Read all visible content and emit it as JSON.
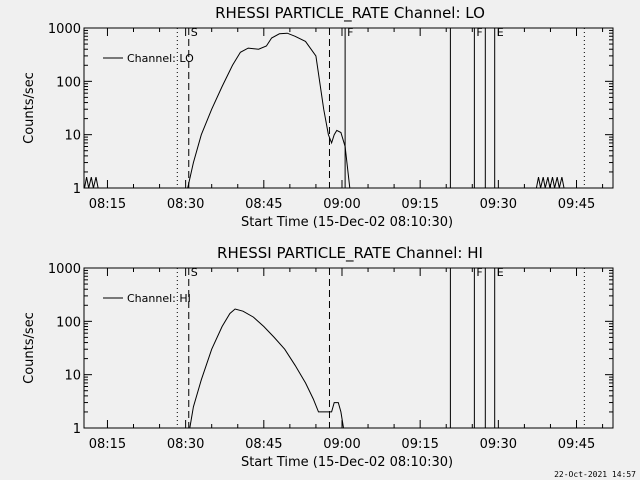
{
  "timestamp": "22-Oct-2021 14:57",
  "x_axis": {
    "label": "Start Time (15-Dec-02 08:10:30)",
    "ticks": [
      "08:15",
      "08:30",
      "08:45",
      "09:00",
      "09:15",
      "09:30",
      "09:45"
    ],
    "tick_minutes": [
      15,
      30,
      45,
      60,
      75,
      90,
      105
    ],
    "range_minutes": [
      10.5,
      112
    ]
  },
  "chart_data": [
    {
      "type": "line",
      "title": "RHESSI PARTICLE_RATE Channel: LO",
      "ylabel": "Counts/sec",
      "yscale": "log",
      "ylim": [
        1,
        1000
      ],
      "yticks": [
        "1",
        "10",
        "100",
        "1000"
      ],
      "ytick_values": [
        1,
        10,
        100,
        1000
      ],
      "legend": "Channel: LO",
      "markers": [
        {
          "label": "S",
          "t": 30.6,
          "style": "dashed"
        },
        {
          "label": "",
          "t": 57.6,
          "style": "dashed"
        },
        {
          "label": "F",
          "t": 60.6,
          "style": "solid"
        },
        {
          "label": "",
          "t": 80.8,
          "style": "solid"
        },
        {
          "label": "F",
          "t": 85.4,
          "style": "solid"
        },
        {
          "label": "",
          "t": 87.5,
          "style": "solid"
        },
        {
          "label": "E",
          "t": 89.3,
          "style": "solid"
        },
        {
          "label": "",
          "t": 28.4,
          "style": "dotted"
        },
        {
          "label": "",
          "t": 106.5,
          "style": "dotted"
        }
      ],
      "series": [
        {
          "name": "Channel: LO",
          "points": [
            [
              10.6,
              1
            ],
            [
              11.0,
              1.6
            ],
            [
              11.4,
              1
            ],
            [
              11.9,
              1.6
            ],
            [
              12.3,
              1
            ],
            [
              12.8,
              1.6
            ],
            [
              13.2,
              1
            ],
            [
              30.4,
              1
            ],
            [
              31.5,
              3
            ],
            [
              33,
              10
            ],
            [
              35,
              30
            ],
            [
              37,
              80
            ],
            [
              39,
              200
            ],
            [
              40.5,
              350
            ],
            [
              42,
              420
            ],
            [
              44,
              400
            ],
            [
              45.5,
              460
            ],
            [
              46.5,
              650
            ],
            [
              48,
              780
            ],
            [
              49.5,
              800
            ],
            [
              51,
              700
            ],
            [
              53,
              560
            ],
            [
              55,
              300
            ],
            [
              56.5,
              30
            ],
            [
              57.4,
              10
            ],
            [
              58.0,
              7
            ],
            [
              58.5,
              10
            ],
            [
              59.0,
              12
            ],
            [
              59.8,
              11
            ],
            [
              60.6,
              6
            ],
            [
              61.5,
              1
            ],
            [
              97.3,
              1
            ],
            [
              97.7,
              1.6
            ],
            [
              98.1,
              1
            ],
            [
              98.6,
              1.6
            ],
            [
              99.0,
              1
            ],
            [
              99.5,
              1.6
            ],
            [
              99.9,
              1
            ],
            [
              100.4,
              1.6
            ],
            [
              100.8,
              1
            ],
            [
              101.3,
              1.6
            ],
            [
              101.7,
              1
            ],
            [
              102.2,
              1.6
            ],
            [
              102.6,
              1
            ]
          ]
        }
      ]
    },
    {
      "type": "line",
      "title": "RHESSI PARTICLE_RATE Channel: HI",
      "ylabel": "Counts/sec",
      "yscale": "log",
      "ylim": [
        1,
        1000
      ],
      "yticks": [
        "1",
        "10",
        "100",
        "1000"
      ],
      "ytick_values": [
        1,
        10,
        100,
        1000
      ],
      "legend": "Channel: HI",
      "markers": [
        {
          "label": "S",
          "t": 30.6,
          "style": "dashed"
        },
        {
          "label": "",
          "t": 57.6,
          "style": "dashed"
        },
        {
          "label": "",
          "t": 80.8,
          "style": "solid"
        },
        {
          "label": "F",
          "t": 85.4,
          "style": "solid"
        },
        {
          "label": "",
          "t": 87.5,
          "style": "solid"
        },
        {
          "label": "E",
          "t": 89.3,
          "style": "solid"
        },
        {
          "label": "",
          "t": 28.4,
          "style": "dotted"
        },
        {
          "label": "",
          "t": 106.5,
          "style": "dotted"
        }
      ],
      "series": [
        {
          "name": "Channel: HI",
          "points": [
            [
              30.8,
              1
            ],
            [
              31.5,
              2.5
            ],
            [
              33,
              8
            ],
            [
              35,
              30
            ],
            [
              37,
              80
            ],
            [
              38.5,
              140
            ],
            [
              39.5,
              170
            ],
            [
              41,
              155
            ],
            [
              43,
              120
            ],
            [
              45,
              80
            ],
            [
              47,
              50
            ],
            [
              49,
              30
            ],
            [
              51,
              15
            ],
            [
              53,
              7
            ],
            [
              54.5,
              3.5
            ],
            [
              55.5,
              2
            ],
            [
              56.0,
              2
            ],
            [
              58.0,
              2
            ],
            [
              58.5,
              3
            ],
            [
              59.3,
              3
            ],
            [
              59.8,
              2
            ],
            [
              60.3,
              1
            ]
          ]
        }
      ]
    }
  ]
}
